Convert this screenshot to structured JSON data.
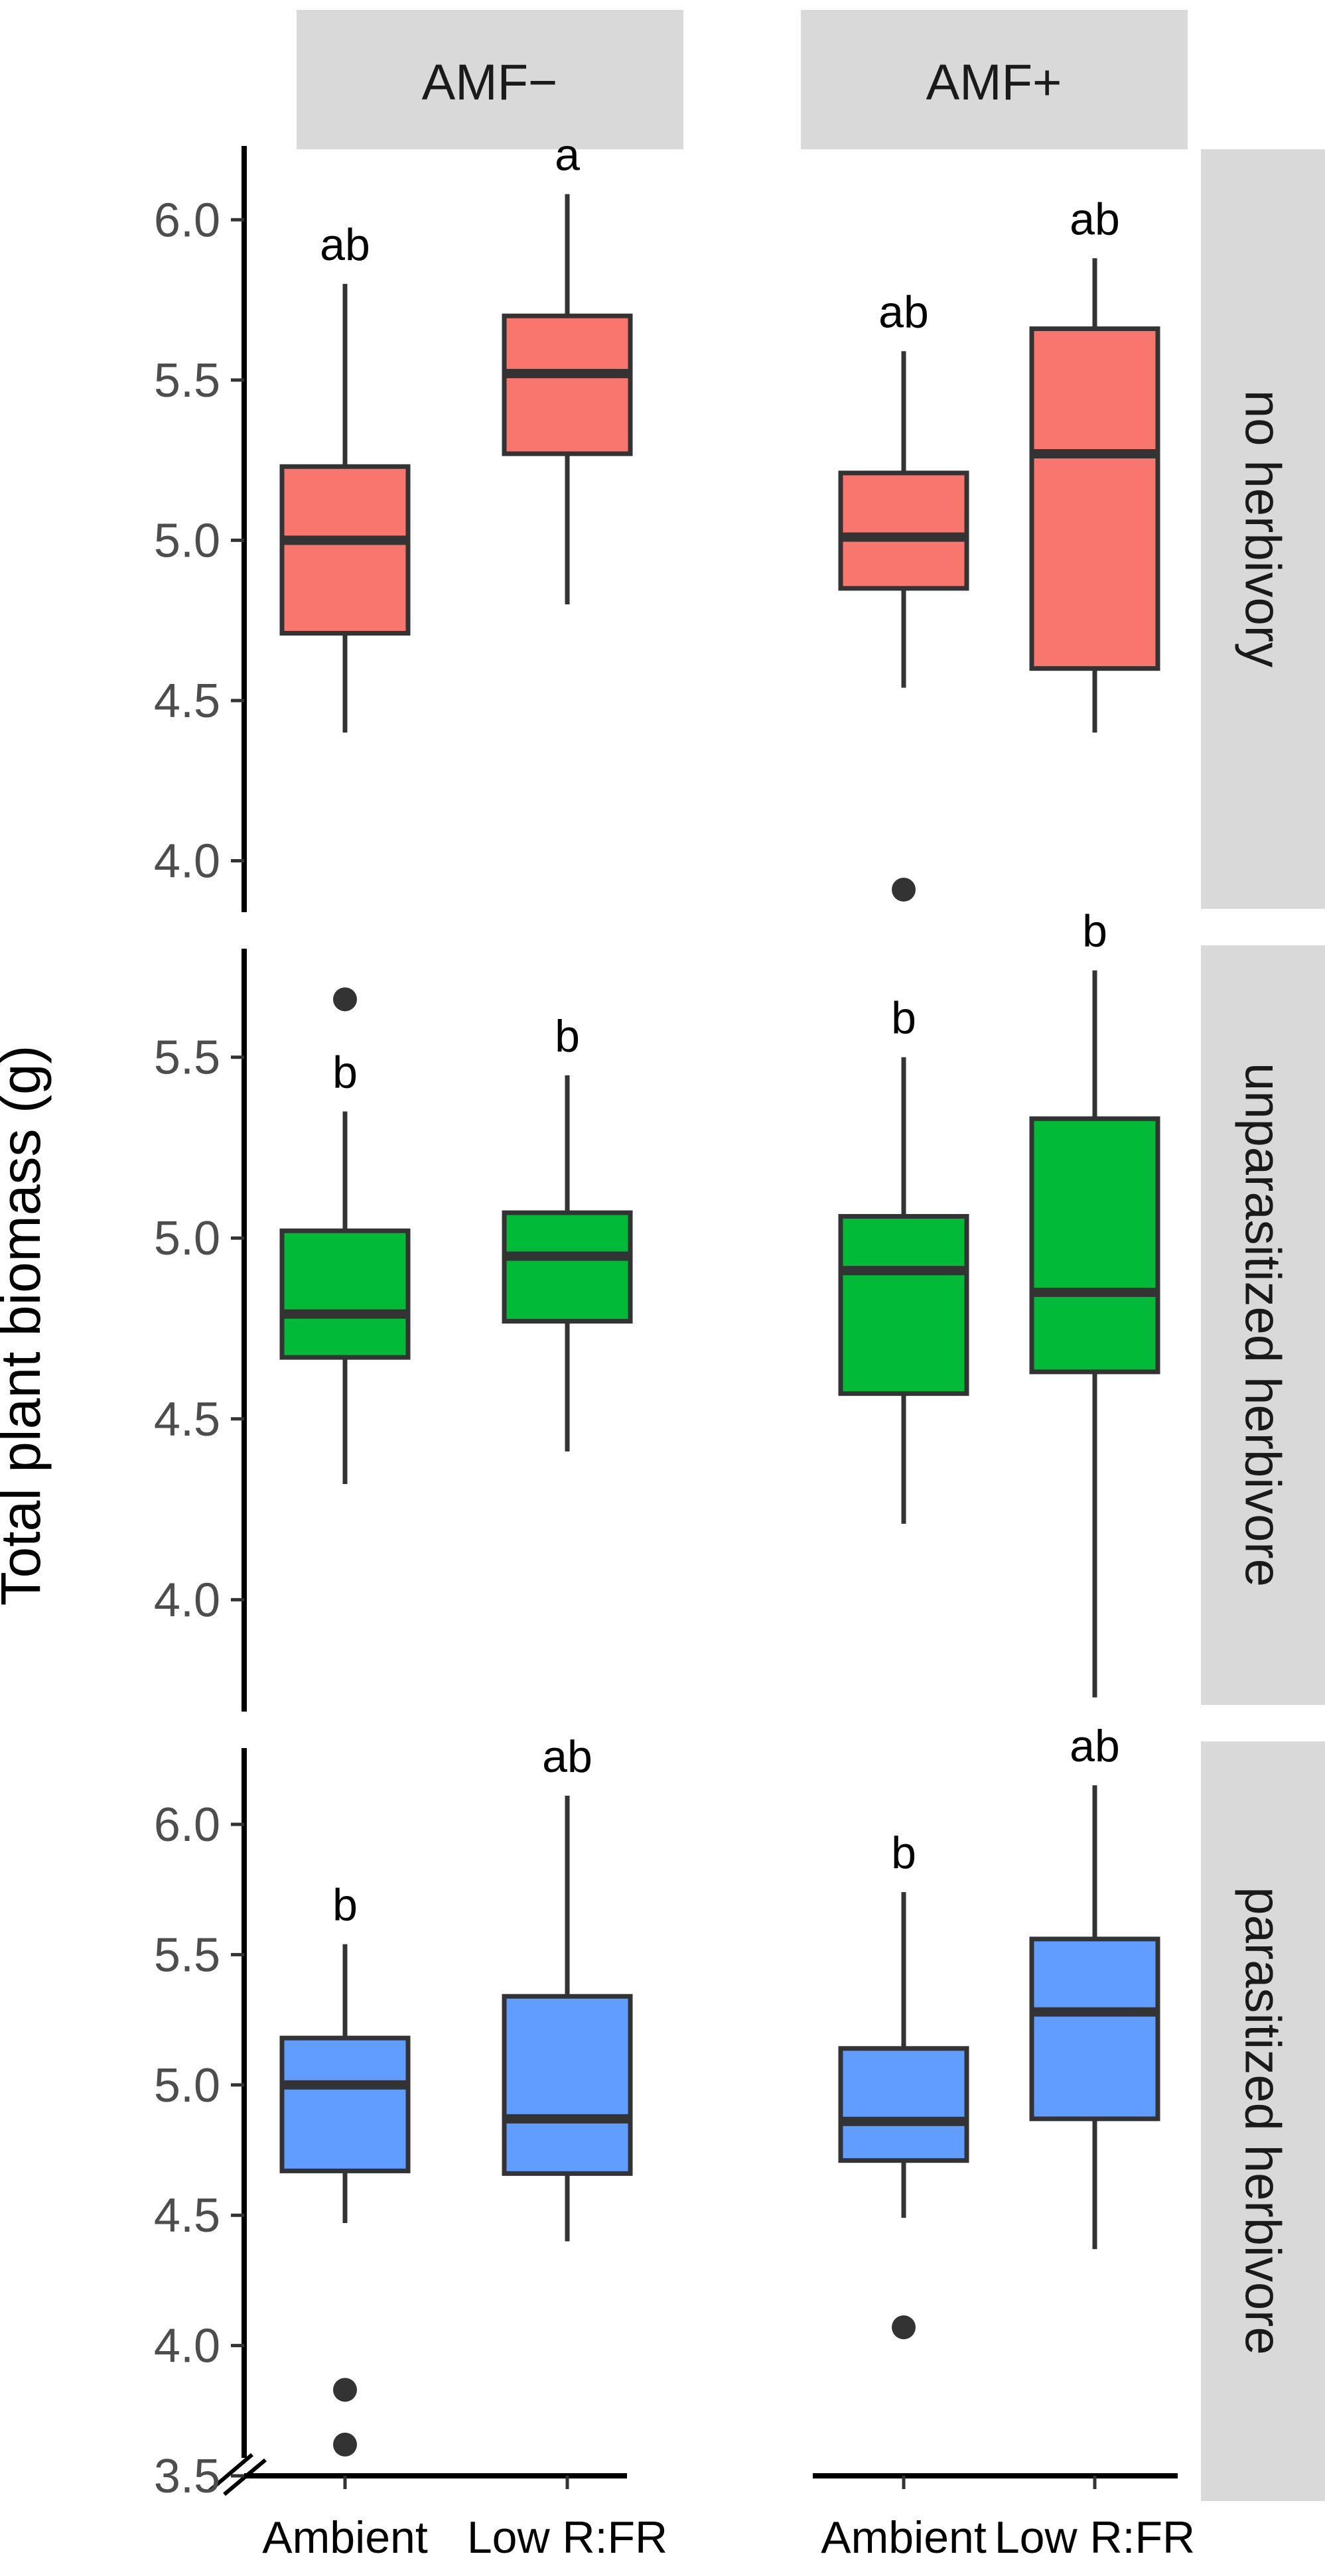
{
  "chart_data": {
    "type": "boxplot",
    "ylabel": "Total plant biomass (g)",
    "x_categories": [
      "Ambient",
      "Low R:FR"
    ],
    "columns": [
      "AMF−",
      "AMF+"
    ],
    "rows": [
      "no herbivory",
      "unparasitized herbivore",
      "parasitized herbivore"
    ],
    "panels": [
      {
        "row": "no herbivory",
        "color": "#F8766D",
        "ylim": [
          3.85,
          6.22
        ],
        "ticks": [
          4.0,
          4.5,
          5.0,
          5.5,
          6.0
        ],
        "tick_labels": [
          "4.0",
          "4.5",
          "5.0",
          "5.5",
          "6.0"
        ],
        "groups": [
          {
            "column": "AMF−",
            "category": "Ambient",
            "whisker_low": 4.4,
            "q1": 4.71,
            "median": 5.0,
            "q3": 5.23,
            "whisker_high": 5.8,
            "outliers": [],
            "letter": "ab"
          },
          {
            "column": "AMF−",
            "category": "Low R:FR",
            "whisker_low": 4.8,
            "q1": 5.27,
            "median": 5.52,
            "q3": 5.7,
            "whisker_high": 6.08,
            "outliers": [],
            "letter": "a"
          },
          {
            "column": "AMF+",
            "category": "Ambient",
            "whisker_low": 4.54,
            "q1": 4.85,
            "median": 5.01,
            "q3": 5.21,
            "whisker_high": 5.59,
            "outliers": [
              3.91
            ],
            "letter": "ab"
          },
          {
            "column": "AMF+",
            "category": "Low R:FR",
            "whisker_low": 4.4,
            "q1": 4.6,
            "median": 5.27,
            "q3": 5.66,
            "whisker_high": 5.88,
            "outliers": [],
            "letter": "ab"
          }
        ]
      },
      {
        "row": "unparasitized herbivore",
        "color": "#00BA38",
        "ylim": [
          3.7,
          5.8
        ],
        "ticks": [
          4.0,
          4.5,
          5.0,
          5.5
        ],
        "tick_labels": [
          "4.0",
          "4.5",
          "5.0",
          "5.5"
        ],
        "groups": [
          {
            "column": "AMF−",
            "category": "Ambient",
            "whisker_low": 4.32,
            "q1": 4.67,
            "median": 4.79,
            "q3": 5.02,
            "whisker_high": 5.35,
            "outliers": [
              5.66
            ],
            "letter": "b"
          },
          {
            "column": "AMF−",
            "category": "Low R:FR",
            "whisker_low": 4.41,
            "q1": 4.77,
            "median": 4.95,
            "q3": 5.07,
            "whisker_high": 5.45,
            "outliers": [],
            "letter": "b"
          },
          {
            "column": "AMF+",
            "category": "Ambient",
            "whisker_low": 4.21,
            "q1": 4.57,
            "median": 4.91,
            "q3": 5.06,
            "whisker_high": 5.5,
            "outliers": [],
            "letter": "b"
          },
          {
            "column": "AMF+",
            "category": "Low R:FR",
            "whisker_low": 3.73,
            "q1": 4.63,
            "median": 4.85,
            "q3": 5.33,
            "whisker_high": 5.74,
            "outliers": [],
            "letter": "b"
          }
        ]
      },
      {
        "row": "parasitized herbivore",
        "color": "#619CFF",
        "ylim": [
          3.5,
          6.28
        ],
        "ticks": [
          3.5,
          4.0,
          4.5,
          5.0,
          5.5,
          6.0
        ],
        "tick_labels": [
          "3.5",
          "4.0",
          "4.5",
          "5.0",
          "5.5",
          "6.0"
        ],
        "groups": [
          {
            "column": "AMF−",
            "category": "Ambient",
            "whisker_low": 4.47,
            "q1": 4.67,
            "median": 5.0,
            "q3": 5.18,
            "whisker_high": 5.54,
            "outliers": [
              3.83,
              3.62
            ],
            "letter": "b"
          },
          {
            "column": "AMF−",
            "category": "Low R:FR",
            "whisker_low": 4.4,
            "q1": 4.66,
            "median": 4.87,
            "q3": 5.34,
            "whisker_high": 6.11,
            "outliers": [],
            "letter": "ab"
          },
          {
            "column": "AMF+",
            "category": "Ambient",
            "whisker_low": 4.49,
            "q1": 4.71,
            "median": 4.86,
            "q3": 5.14,
            "whisker_high": 5.74,
            "outliers": [
              4.07
            ],
            "letter": "b"
          },
          {
            "column": "AMF+",
            "category": "Low R:FR",
            "whisker_low": 4.37,
            "q1": 4.87,
            "median": 5.28,
            "q3": 5.56,
            "whisker_high": 6.15,
            "outliers": [],
            "letter": "ab"
          }
        ]
      }
    ]
  }
}
